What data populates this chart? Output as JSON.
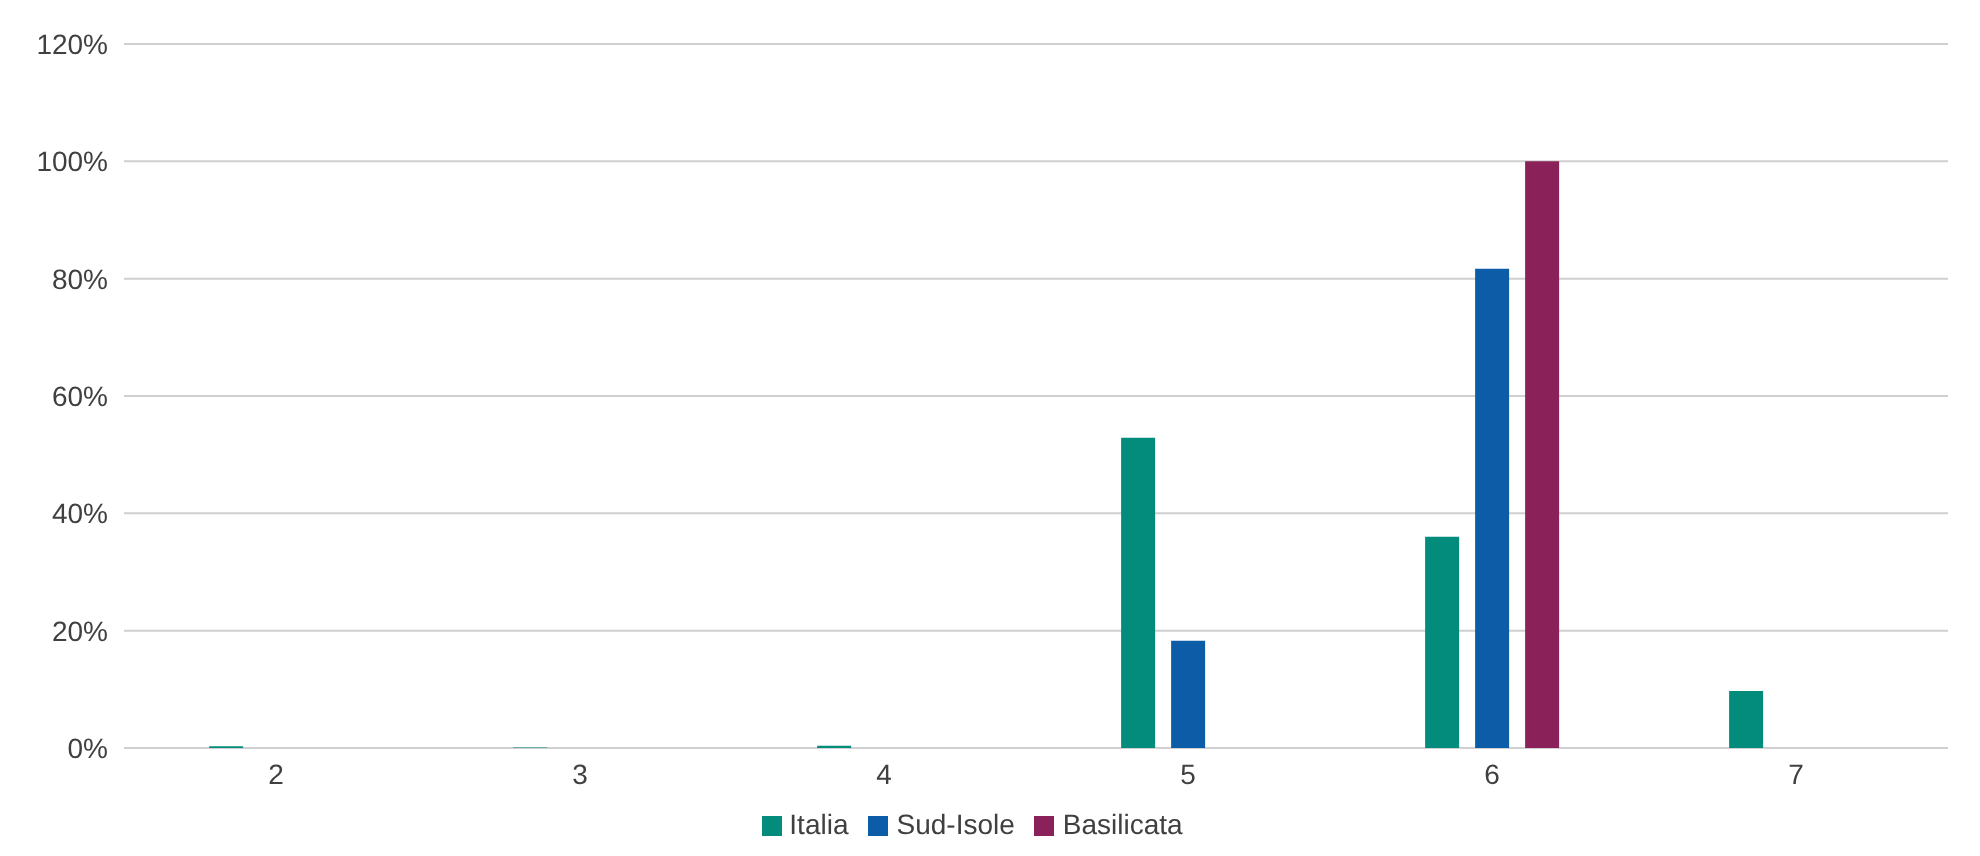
{
  "chart_data": {
    "type": "bar",
    "categories": [
      "2",
      "3",
      "4",
      "5",
      "6",
      "7"
    ],
    "series": [
      {
        "name": "Italia",
        "color": "#038c7c",
        "values": [
          0.3,
          0.1,
          0.4,
          52.9,
          36,
          9.7
        ]
      },
      {
        "name": "Sud-Isole",
        "color": "#0c5ca8",
        "values": [
          0,
          0,
          0,
          18.3,
          81.7,
          0
        ]
      },
      {
        "name": "Basilicata",
        "color": "#8b2159",
        "values": [
          0,
          0,
          0,
          0,
          100,
          0
        ]
      }
    ],
    "ylim": [
      0,
      120
    ],
    "yticks": [
      {
        "value": 0,
        "label": "0%"
      },
      {
        "value": 20,
        "label": "20%"
      },
      {
        "value": 40,
        "label": "40%"
      },
      {
        "value": 60,
        "label": "60%"
      },
      {
        "value": 80,
        "label": "80%"
      },
      {
        "value": 100,
        "label": "100%"
      },
      {
        "value": 120,
        "label": "120%"
      }
    ],
    "grid": "y",
    "legend": "bottom"
  }
}
